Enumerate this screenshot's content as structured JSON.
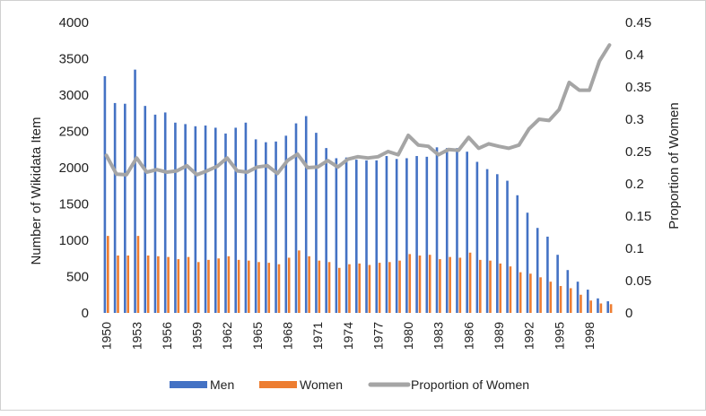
{
  "chart_data": {
    "type": "bar+line",
    "title": "",
    "xlabel": "",
    "ylabel_left": "Number of Wikidata Item",
    "ylabel_right": "Proportion of Women",
    "ylim_left": [
      0,
      4000
    ],
    "ylim_right": [
      0,
      0.45
    ],
    "yticks_left": [
      "0",
      "500",
      "1000",
      "1500",
      "2000",
      "2500",
      "3000",
      "3500",
      "4000"
    ],
    "yticks_right": [
      "0",
      "0.05",
      "0.1",
      "0.15",
      "0.2",
      "0.25",
      "0.3",
      "0.35",
      "0.4",
      "0.45"
    ],
    "x_tick_labels": [
      "1950",
      "1953",
      "1956",
      "1959",
      "1962",
      "1965",
      "1968",
      "1971",
      "1974",
      "1977",
      "1980",
      "1983",
      "1986",
      "1989",
      "1992",
      "1995",
      "1998"
    ],
    "grid": false,
    "legend_position": "bottom",
    "x": [
      1950,
      1951,
      1952,
      1953,
      1954,
      1955,
      1956,
      1957,
      1958,
      1959,
      1960,
      1961,
      1962,
      1963,
      1964,
      1965,
      1966,
      1967,
      1968,
      1969,
      1970,
      1971,
      1972,
      1973,
      1974,
      1975,
      1976,
      1977,
      1978,
      1979,
      1980,
      1981,
      1982,
      1983,
      1984,
      1985,
      1986,
      1987,
      1988,
      1989,
      1990,
      1991,
      1992,
      1993,
      1994,
      1995,
      1996,
      1997,
      1998,
      1999,
      2000
    ],
    "series": [
      {
        "name": "Men",
        "type": "bar",
        "axis": "left",
        "color": "#4472C4",
        "values": [
          3260,
          2890,
          2880,
          3350,
          2850,
          2730,
          2760,
          2620,
          2600,
          2570,
          2580,
          2550,
          2470,
          2550,
          2620,
          2390,
          2350,
          2360,
          2440,
          2610,
          2710,
          2480,
          2270,
          2130,
          2140,
          2110,
          2100,
          2100,
          2160,
          2120,
          2130,
          2160,
          2150,
          2280,
          2270,
          2270,
          2220,
          2080,
          1980,
          1910,
          1820,
          1620,
          1380,
          1170,
          1050,
          800,
          590,
          430,
          320,
          200,
          160
        ]
      },
      {
        "name": "Women",
        "type": "bar",
        "axis": "left",
        "color": "#ED7D31",
        "values": [
          1060,
          790,
          790,
          1060,
          790,
          780,
          770,
          740,
          770,
          700,
          730,
          750,
          780,
          730,
          720,
          700,
          690,
          670,
          760,
          860,
          780,
          720,
          700,
          620,
          670,
          680,
          660,
          690,
          700,
          720,
          810,
          790,
          800,
          740,
          770,
          760,
          830,
          730,
          720,
          680,
          640,
          560,
          540,
          490,
          430,
          370,
          340,
          250,
          170,
          130,
          120
        ]
      },
      {
        "name": "Proportion of Women",
        "type": "line",
        "axis": "right",
        "color": "#A5A5A5",
        "values": [
          0.244,
          0.215,
          0.214,
          0.24,
          0.218,
          0.222,
          0.218,
          0.22,
          0.228,
          0.214,
          0.22,
          0.227,
          0.24,
          0.22,
          0.218,
          0.226,
          0.228,
          0.216,
          0.236,
          0.246,
          0.225,
          0.226,
          0.236,
          0.226,
          0.238,
          0.242,
          0.24,
          0.242,
          0.25,
          0.245,
          0.275,
          0.26,
          0.258,
          0.245,
          0.253,
          0.252,
          0.272,
          0.255,
          0.262,
          0.258,
          0.255,
          0.26,
          0.285,
          0.3,
          0.298,
          0.315,
          0.357,
          0.345,
          0.345,
          0.39,
          0.415
        ]
      }
    ]
  }
}
